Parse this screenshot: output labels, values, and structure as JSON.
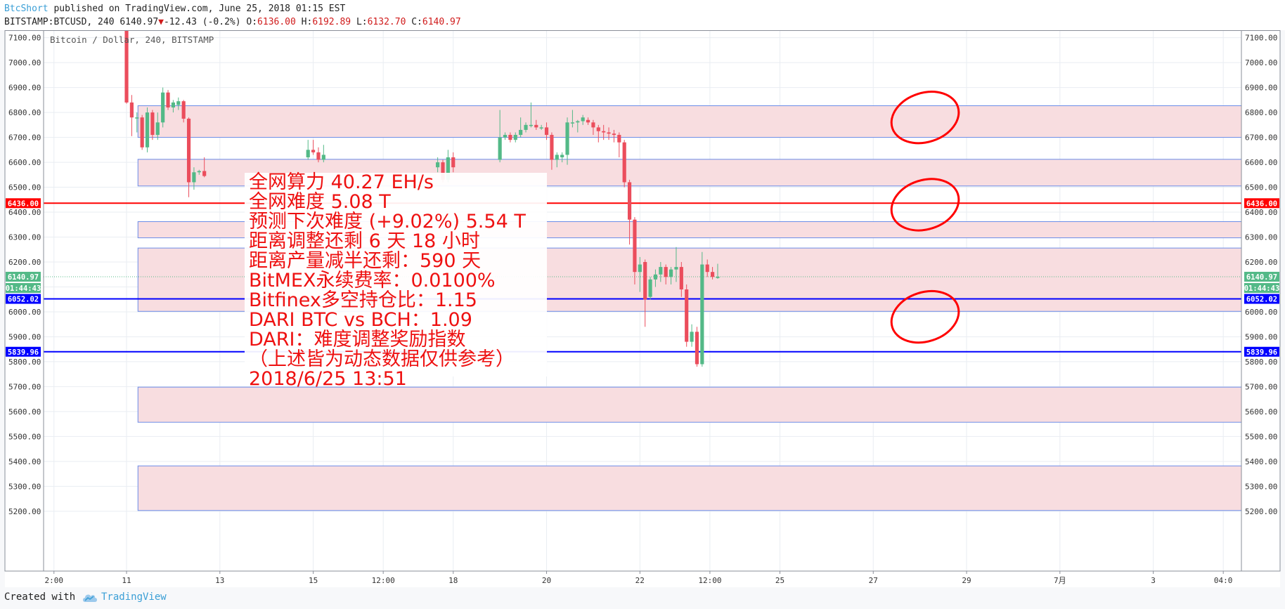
{
  "header": {
    "author": "BtcShort",
    "published_text": " published on TradingView.com, June 25, 2018 01:15 EST",
    "symbol_text": "BITSTAMP:BTCUSD, 240 6140.97",
    "arrow": "▼",
    "change_text": "-12.43 (-0.2%)",
    "o_label": " O:",
    "o_value": "6136.00",
    "h_label": " H:",
    "h_value": "6192.89",
    "l_label": " L:",
    "l_value": "6132.70",
    "c_label": " C:",
    "c_value": "6140.97"
  },
  "footer": {
    "created_with": "Created with",
    "brand": "TradingView"
  },
  "colors": {
    "up": "#53b987",
    "down": "#eb4d5c",
    "zone_fill": "#f8dde0",
    "zone_border": "#6b8ce8",
    "red_line": "#ff0000",
    "blue_line": "#0000ff",
    "text_red": "#ee1111",
    "grid": "#e9edf2"
  },
  "annotation_lines": [
    "全网算力 40.27 EH/s",
    "全网难度 5.08 T",
    "预测下次难度 (+9.02%) 5.54 T",
    "距离调整还剩 6 天 18 小时",
    "距离产量减半还剩：590 天",
    "BitMEX永续费率：0.0100%",
    "Bitfinex多空持仓比：1.15",
    "DARI BTC vs BCH：1.09",
    "DARI：难度调整奖励指数",
    "（上述皆为动态数据仅供参考）",
    "2018/6/25 13:51"
  ],
  "chart_data": {
    "type": "candlestick",
    "title": "Bitcoin / Dollar, 240, BITSTAMP",
    "xlabel": "",
    "ylabel": "",
    "ylim": [
      4960,
      7130
    ],
    "yticks": [
      5200,
      5300,
      5400,
      5500,
      5600,
      5700,
      5800,
      5900,
      6000,
      6100,
      6200,
      6300,
      6400,
      6500,
      6600,
      6700,
      6800,
      6900,
      7000,
      7100
    ],
    "ytick_labels": [
      "5200.00",
      "5300.00",
      "5400.00",
      "5500.00",
      "5600.00",
      "5700.00",
      "5800.00",
      "5900.00",
      "6000.00",
      "6100.00",
      "6200.00",
      "6300.00",
      "6400.00",
      "6500.00",
      "6600.00",
      "6700.00",
      "6800.00",
      "6900.00",
      "7000.00",
      "7100.00"
    ],
    "x_unit": "240-minute bars",
    "xlim": [
      -16,
      215
    ],
    "xticks": [
      {
        "bar": -14,
        "label": "2:00"
      },
      {
        "bar": 0,
        "label": "11"
      },
      {
        "bar": 18,
        "label": "13"
      },
      {
        "bar": 36,
        "label": "15"
      },
      {
        "bar": 49.5,
        "label": "12:00"
      },
      {
        "bar": 63,
        "label": "18"
      },
      {
        "bar": 81,
        "label": "20"
      },
      {
        "bar": 99,
        "label": "22"
      },
      {
        "bar": 112.5,
        "label": "12:00"
      },
      {
        "bar": 126,
        "label": "25"
      },
      {
        "bar": 144,
        "label": "27"
      },
      {
        "bar": 162,
        "label": "29"
      },
      {
        "bar": 180,
        "label": "7月"
      },
      {
        "bar": 198,
        "label": "3"
      },
      {
        "bar": 211.5,
        "label": "04:0"
      }
    ],
    "candles": [
      [
        0,
        7130,
        7140,
        6835,
        6840
      ],
      [
        1,
        6840,
        6870,
        6705,
        6780
      ],
      [
        2,
        6780,
        6800,
        6720,
        6780
      ],
      [
        3,
        6780,
        6790,
        6650,
        6660
      ],
      [
        4,
        6660,
        6820,
        6640,
        6800
      ],
      [
        5,
        6800,
        6810,
        6690,
        6710
      ],
      [
        6,
        6710,
        6800,
        6690,
        6760
      ],
      [
        7,
        6760,
        6900,
        6740,
        6880
      ],
      [
        8,
        6880,
        6890,
        6810,
        6820
      ],
      [
        9,
        6820,
        6850,
        6800,
        6840
      ],
      [
        10,
        6830,
        6860,
        6810,
        6845
      ],
      [
        11,
        6845,
        6850,
        6760,
        6775
      ],
      [
        12,
        6775,
        6780,
        6460,
        6520
      ],
      [
        13,
        6520,
        6580,
        6490,
        6560
      ],
      [
        14,
        6560,
        6570,
        6550,
        6565
      ],
      [
        15,
        6565,
        6620,
        6540,
        6545
      ],
      [
        35,
        6620,
        6690,
        6610,
        6650
      ],
      [
        36,
        6650,
        6690,
        6630,
        6640
      ],
      [
        37,
        6640,
        6660,
        6600,
        6610
      ],
      [
        38,
        6610,
        6670,
        6600,
        6630
      ],
      [
        60,
        6580,
        6620,
        6560,
        6600
      ],
      [
        61,
        6600,
        6610,
        6520,
        6530
      ],
      [
        62,
        6530,
        6650,
        6520,
        6620
      ],
      [
        63,
        6620,
        6640,
        6560,
        6580
      ],
      [
        72,
        6610,
        6810,
        6600,
        6700
      ],
      [
        73,
        6700,
        6720,
        6690,
        6710
      ],
      [
        74,
        6710,
        6720,
        6680,
        6690
      ],
      [
        75,
        6690,
        6720,
        6680,
        6710
      ],
      [
        76,
        6710,
        6780,
        6700,
        6730
      ],
      [
        77,
        6730,
        6760,
        6720,
        6750
      ],
      [
        78,
        6750,
        6840,
        6740,
        6750
      ],
      [
        79,
        6750,
        6770,
        6730,
        6740
      ],
      [
        80,
        6740,
        6750,
        6730,
        6740
      ],
      [
        81,
        6740,
        6760,
        6690,
        6710
      ],
      [
        82,
        6710,
        6720,
        6570,
        6610
      ],
      [
        83,
        6610,
        6640,
        6580,
        6630
      ],
      [
        84,
        6620,
        6640,
        6600,
        6630
      ],
      [
        85,
        6630,
        6780,
        6590,
        6760
      ],
      [
        86,
        6760,
        6810,
        6740,
        6760
      ],
      [
        87,
        6760,
        6770,
        6720,
        6765
      ],
      [
        88,
        6765,
        6790,
        6750,
        6780
      ],
      [
        89,
        6770,
        6780,
        6750,
        6760
      ],
      [
        90,
        6760,
        6770,
        6710,
        6740
      ],
      [
        91,
        6740,
        6750,
        6680,
        6725
      ],
      [
        92,
        6725,
        6750,
        6690,
        6720
      ],
      [
        93,
        6720,
        6740,
        6690,
        6715
      ],
      [
        94,
        6715,
        6730,
        6680,
        6710
      ],
      [
        95,
        6710,
        6720,
        6620,
        6680
      ],
      [
        96,
        6680,
        6690,
        6500,
        6520
      ],
      [
        97,
        6520,
        6530,
        6270,
        6370
      ],
      [
        98,
        6370,
        6380,
        6110,
        6160
      ],
      [
        99,
        6160,
        6220,
        6080,
        6190
      ],
      [
        100,
        6200,
        6210,
        5940,
        6050
      ],
      [
        101,
        6060,
        6140,
        6050,
        6130
      ],
      [
        102,
        6130,
        6170,
        6100,
        6150
      ],
      [
        103,
        6150,
        6200,
        6120,
        6180
      ],
      [
        104,
        6180,
        6190,
        6110,
        6140
      ],
      [
        105,
        6140,
        6180,
        6110,
        6170
      ],
      [
        106,
        6170,
        6260,
        6120,
        6180
      ],
      [
        107,
        6180,
        6200,
        6060,
        6090
      ],
      [
        108,
        6090,
        6110,
        5860,
        5880
      ],
      [
        109,
        5880,
        5950,
        5860,
        5920
      ],
      [
        110,
        5920,
        5940,
        5780,
        5790
      ],
      [
        111,
        5790,
        6240,
        5780,
        6190
      ],
      [
        112,
        6190,
        6210,
        6140,
        6160
      ],
      [
        113,
        6160,
        6180,
        6130,
        6140
      ],
      [
        114,
        6136.0,
        6192.89,
        6132.7,
        6140.97
      ]
    ],
    "zones": [
      {
        "top": 6827,
        "bottom": 6700
      },
      {
        "top": 6612,
        "bottom": 6505
      },
      {
        "top": 6362,
        "bottom": 6297
      },
      {
        "top": 6256,
        "bottom": 6002
      },
      {
        "top": 5698,
        "bottom": 5557
      },
      {
        "top": 5382,
        "bottom": 5203
      }
    ],
    "zones_left_bar": 2.2,
    "horizontal_lines": [
      {
        "value": 6436.0,
        "label": "6436.00",
        "color": "#ff0000"
      },
      {
        "value": 6052.02,
        "label": "6052.02",
        "color": "#0000ff"
      },
      {
        "value": 5839.96,
        "label": "5839.96",
        "color": "#0000ff"
      }
    ],
    "last_price": {
      "value": 6140.97,
      "label": "6140.97",
      "timer": "01:44:43",
      "color": "#53b987"
    },
    "ellipse_markers": [
      {
        "bar": 154,
        "price": 6780
      },
      {
        "bar": 154,
        "price": 6430
      },
      {
        "bar": 154,
        "price": 5980
      }
    ]
  }
}
